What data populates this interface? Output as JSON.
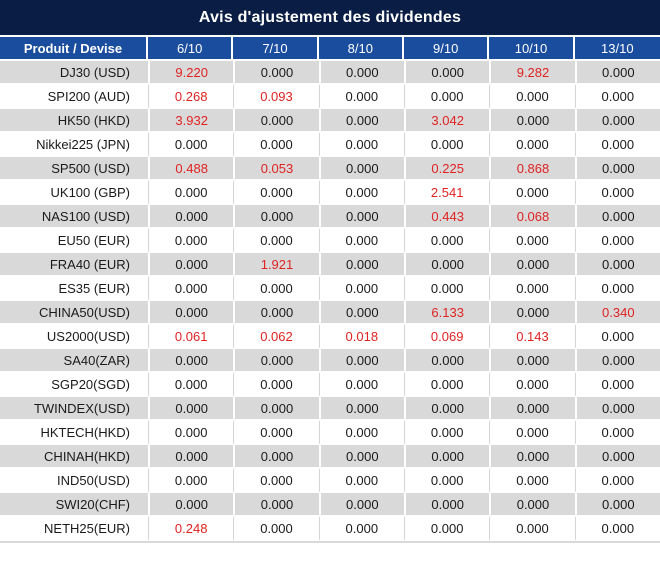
{
  "title": "Avis d'ajustement des dividendes",
  "colors": {
    "title_bg": "#0a1d45",
    "header_bg": "#1a4d9d",
    "header_text": "#ffffff",
    "alt_row_bg": "#d9d9d9",
    "row_bg": "#ffffff",
    "value_text": "#1a1a1a",
    "nonzero_value_text": "#e02222"
  },
  "table": {
    "columns": [
      "Produit / Devise",
      "6/10",
      "7/10",
      "8/10",
      "9/10",
      "10/10",
      "13/10"
    ],
    "rows": [
      {
        "product": "DJ30 (USD)",
        "values": [
          "9.220",
          "0.000",
          "0.000",
          "0.000",
          "9.282",
          "0.000"
        ]
      },
      {
        "product": "SPI200 (AUD)",
        "values": [
          "0.268",
          "0.093",
          "0.000",
          "0.000",
          "0.000",
          "0.000"
        ]
      },
      {
        "product": "HK50 (HKD)",
        "values": [
          "3.932",
          "0.000",
          "0.000",
          "3.042",
          "0.000",
          "0.000"
        ]
      },
      {
        "product": "Nikkei225 (JPN)",
        "values": [
          "0.000",
          "0.000",
          "0.000",
          "0.000",
          "0.000",
          "0.000"
        ]
      },
      {
        "product": "SP500 (USD)",
        "values": [
          "0.488",
          "0.053",
          "0.000",
          "0.225",
          "0.868",
          "0.000"
        ]
      },
      {
        "product": "UK100 (GBP)",
        "values": [
          "0.000",
          "0.000",
          "0.000",
          "2.541",
          "0.000",
          "0.000"
        ]
      },
      {
        "product": "NAS100 (USD)",
        "values": [
          "0.000",
          "0.000",
          "0.000",
          "0.443",
          "0.068",
          "0.000"
        ]
      },
      {
        "product": "EU50 (EUR)",
        "values": [
          "0.000",
          "0.000",
          "0.000",
          "0.000",
          "0.000",
          "0.000"
        ]
      },
      {
        "product": "FRA40 (EUR)",
        "values": [
          "0.000",
          "1.921",
          "0.000",
          "0.000",
          "0.000",
          "0.000"
        ]
      },
      {
        "product": "ES35 (EUR)",
        "values": [
          "0.000",
          "0.000",
          "0.000",
          "0.000",
          "0.000",
          "0.000"
        ]
      },
      {
        "product": "CHINA50(USD)",
        "values": [
          "0.000",
          "0.000",
          "0.000",
          "6.133",
          "0.000",
          "0.340"
        ]
      },
      {
        "product": "US2000(USD)",
        "values": [
          "0.061",
          "0.062",
          "0.018",
          "0.069",
          "0.143",
          "0.000"
        ]
      },
      {
        "product": "SA40(ZAR)",
        "values": [
          "0.000",
          "0.000",
          "0.000",
          "0.000",
          "0.000",
          "0.000"
        ]
      },
      {
        "product": "SGP20(SGD)",
        "values": [
          "0.000",
          "0.000",
          "0.000",
          "0.000",
          "0.000",
          "0.000"
        ]
      },
      {
        "product": "TWINDEX(USD)",
        "values": [
          "0.000",
          "0.000",
          "0.000",
          "0.000",
          "0.000",
          "0.000"
        ]
      },
      {
        "product": "HKTECH(HKD)",
        "values": [
          "0.000",
          "0.000",
          "0.000",
          "0.000",
          "0.000",
          "0.000"
        ]
      },
      {
        "product": "CHINAH(HKD)",
        "values": [
          "0.000",
          "0.000",
          "0.000",
          "0.000",
          "0.000",
          "0.000"
        ]
      },
      {
        "product": "IND50(USD)",
        "values": [
          "0.000",
          "0.000",
          "0.000",
          "0.000",
          "0.000",
          "0.000"
        ]
      },
      {
        "product": "SWI20(CHF)",
        "values": [
          "0.000",
          "0.000",
          "0.000",
          "0.000",
          "0.000",
          "0.000"
        ]
      },
      {
        "product": "NETH25(EUR)",
        "values": [
          "0.248",
          "0.000",
          "0.000",
          "0.000",
          "0.000",
          "0.000"
        ]
      }
    ]
  }
}
